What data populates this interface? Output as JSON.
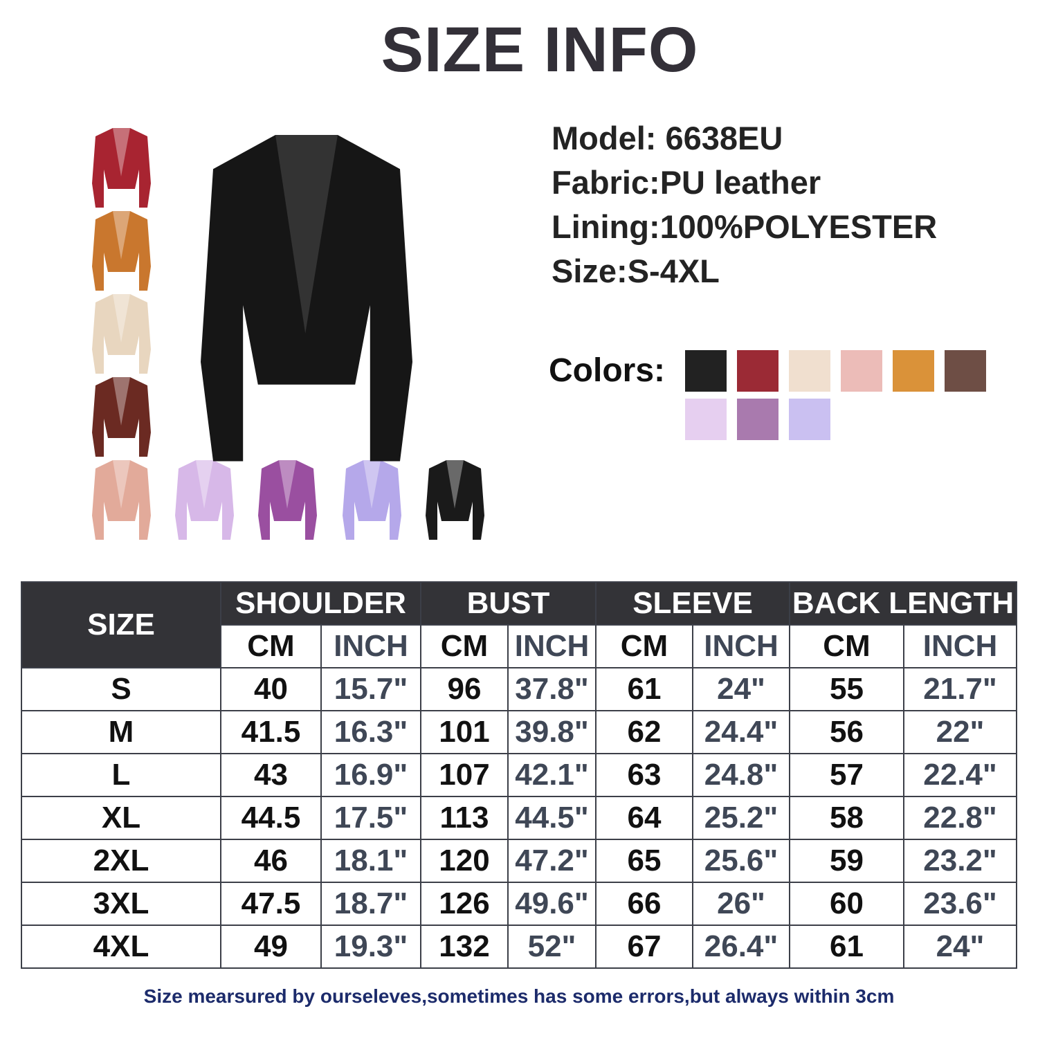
{
  "header": {
    "title": "SIZE INFO"
  },
  "specs": [
    "Model: 6638EU",
    "Fabric:PU leather",
    "Lining:100%POLYESTER",
    "Size:S-4XL"
  ],
  "colors": {
    "label": "Colors:",
    "swatches": [
      "#222222",
      "#9b2a35",
      "#f0dfcf",
      "#ecbcb8",
      "#da9239",
      "#6e4e45",
      "#e6cff0",
      "#a97aae",
      "#cac0f1"
    ]
  },
  "table": {
    "size_header": "SIZE",
    "groups": [
      "SHOULDER",
      "BUST",
      "SLEEVE",
      "BACK LENGTH"
    ],
    "subheaders": [
      "CM",
      "INCH",
      "CM",
      "INCH",
      "CM",
      "INCH",
      "CM",
      "INCH"
    ],
    "rows": [
      [
        "S",
        "40",
        "15.7\"",
        "96",
        "37.8\"",
        "61",
        "24\"",
        "55",
        "21.7\""
      ],
      [
        "M",
        "41.5",
        "16.3\"",
        "101",
        "39.8\"",
        "62",
        "24.4\"",
        "56",
        "22\""
      ],
      [
        "L",
        "43",
        "16.9\"",
        "107",
        "42.1\"",
        "63",
        "24.8\"",
        "57",
        "22.4\""
      ],
      [
        "XL",
        "44.5",
        "17.5\"",
        "113",
        "44.5\"",
        "64",
        "25.2\"",
        "58",
        "22.8\""
      ],
      [
        "2XL",
        "46",
        "18.1\"",
        "120",
        "47.2\"",
        "65",
        "25.6\"",
        "59",
        "23.2\""
      ],
      [
        "3XL",
        "47.5",
        "18.7\"",
        "126",
        "49.6\"",
        "66",
        "26\"",
        "60",
        "23.6\""
      ],
      [
        "4XL",
        "49",
        "19.3\"",
        "132",
        "52\"",
        "67",
        "26.4\"",
        "61",
        "24\""
      ]
    ]
  },
  "footnote": "Size mearsured by ourseleves,sometimes has some errors,but always within 3cm"
}
